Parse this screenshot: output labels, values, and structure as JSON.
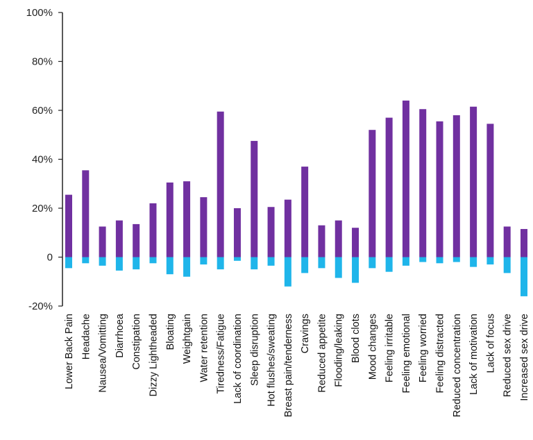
{
  "chart_data": {
    "type": "bar",
    "categories": [
      "Lower Back Pain",
      "Headache",
      "Nausea/Vomitting",
      "Diarrhoea",
      "Constipation",
      "Dizzy Lightheaded",
      "Bloating",
      "Weightgain",
      "Water retention",
      "Tiredness/Fatigue",
      "Lack of coordination",
      "Sleep disruption",
      "Hot flushes/sweating",
      "Breast pain/tenderness",
      "Cravings",
      "Reduced appetite",
      "Flooding/leaking",
      "Blood clots",
      "Mood changes",
      "Feeling irritable",
      "Feeling emotional",
      "Feeling worried",
      "Feeling distracted",
      "Reduced concentration",
      "Lack of motivation",
      "Lack of focus",
      "Reduced sex drive",
      "Increased sex drive"
    ],
    "series": [
      {
        "color": "#7030a0",
        "values": [
          25.5,
          35.5,
          12.5,
          15,
          13.5,
          22,
          30.5,
          31,
          24.5,
          59.5,
          20,
          47.5,
          20.5,
          23.5,
          37,
          13,
          15,
          12,
          52,
          57,
          64,
          60.5,
          55.5,
          58,
          61.5,
          54.5,
          12.5,
          11.5
        ]
      },
      {
        "color": "#1fb5ea",
        "values": [
          -4.5,
          -2.5,
          -3.5,
          -5.5,
          -5,
          -2.5,
          -7,
          -8,
          -3,
          -5,
          -1.5,
          -5,
          -3.5,
          -12,
          -6.5,
          -4.5,
          -8.5,
          -10.5,
          -4.5,
          -6,
          -3.5,
          -2,
          -2.5,
          -2,
          -4,
          -3,
          -6.5,
          -16
        ]
      }
    ],
    "y_ticks": [
      "100%",
      "80%",
      "60%",
      "40%",
      "20%",
      "0",
      "-20%"
    ],
    "ylim": [
      -20,
      100
    ],
    "grid": false,
    "legend": "none"
  }
}
